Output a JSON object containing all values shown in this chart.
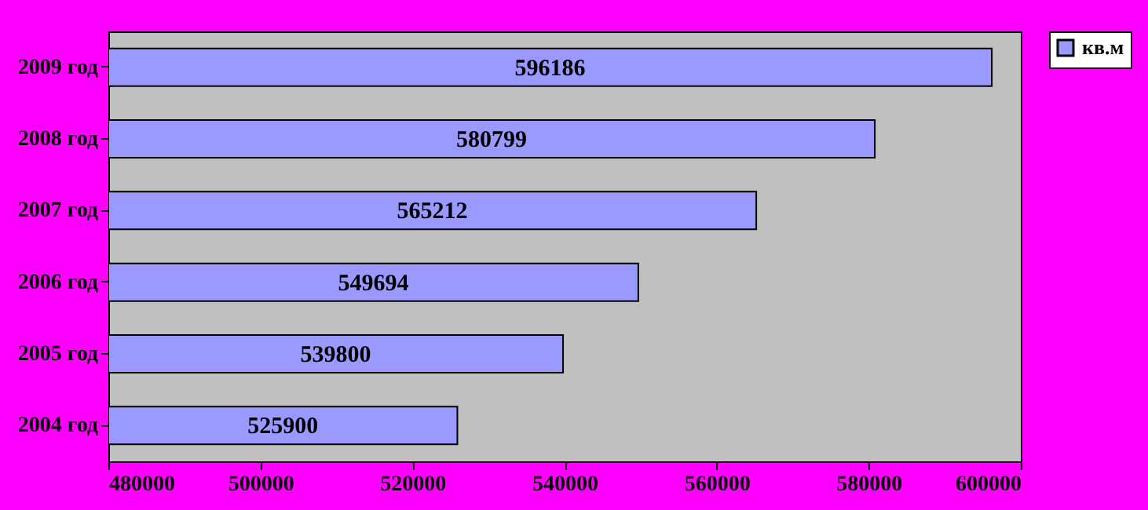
{
  "chart_data": {
    "type": "bar",
    "orientation": "horizontal",
    "categories": [
      "2009 год",
      "2008 год",
      "2007 год",
      "2006 год",
      "2005 год",
      "2004 год"
    ],
    "series": [
      {
        "name": "кв.м",
        "color": "#9999ff",
        "values": [
          596186,
          580799,
          565212,
          549694,
          539800,
          525900
        ]
      }
    ],
    "xlim": [
      480000,
      600000
    ],
    "xticks": [
      480000,
      500000,
      520000,
      540000,
      560000,
      580000,
      600000
    ],
    "data_labels": true,
    "legend": "right",
    "grid": false
  }
}
